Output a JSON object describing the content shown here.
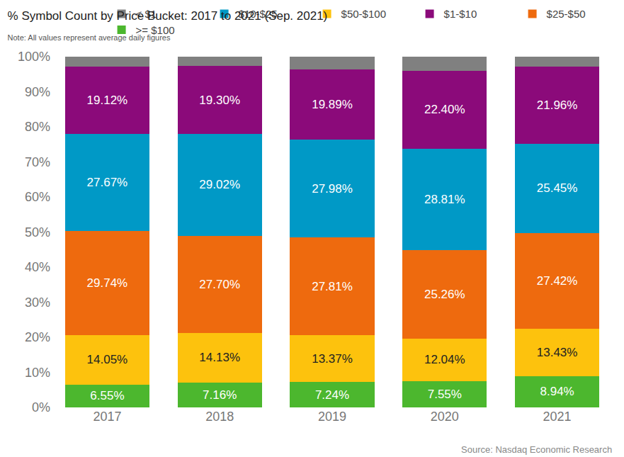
{
  "chart_data": {
    "type": "bar",
    "title": "% Symbol Count by Price Bucket: 2017 to 2021 (Sep. 2021)",
    "subtitle": "Note: All values represent average daily figures",
    "source": "Source: Nasdaq Economic Research",
    "categories": [
      "2017",
      "2018",
      "2019",
      "2020",
      "2021"
    ],
    "stacked": true,
    "data_labels": true,
    "legend": "top right",
    "grid": false,
    "ylim": [
      0,
      100
    ],
    "yticks": [
      {
        "value": 0,
        "label": "0%"
      },
      {
        "value": 10,
        "label": "10%"
      },
      {
        "value": 20,
        "label": "20%"
      },
      {
        "value": 30,
        "label": "30%"
      },
      {
        "value": 40,
        "label": "40%"
      },
      {
        "value": 50,
        "label": "50%"
      },
      {
        "value": 60,
        "label": "60%"
      },
      {
        "value": 70,
        "label": "70%"
      },
      {
        "value": 80,
        "label": "80%"
      },
      {
        "value": 90,
        "label": "90%"
      },
      {
        "value": 100,
        "label": "100%"
      }
    ],
    "series": [
      {
        "name": ">= $100",
        "color": "#4cb72e",
        "values": [
          6.55,
          7.16,
          7.24,
          7.55,
          8.94
        ],
        "value_labels": [
          "6.55%",
          "7.16%",
          "7.24%",
          "7.55%",
          "8.94%"
        ]
      },
      {
        "name": "$50-$100",
        "color": "#fdc20d",
        "values": [
          14.05,
          14.13,
          13.37,
          12.04,
          13.43
        ],
        "value_labels": [
          "14.05%",
          "14.13%",
          "13.37%",
          "12.04%",
          "13.43%"
        ]
      },
      {
        "name": "$25-$50",
        "color": "#ee6a0e",
        "values": [
          29.74,
          27.7,
          27.81,
          25.26,
          27.42
        ],
        "value_labels": [
          "29.74%",
          "27.70%",
          "27.81%",
          "25.26%",
          "27.42%"
        ]
      },
      {
        "name": "$10-$25",
        "color": "#0099c6",
        "values": [
          27.67,
          29.02,
          27.98,
          28.81,
          25.45
        ],
        "value_labels": [
          "27.67%",
          "29.02%",
          "27.98%",
          "28.81%",
          "25.45%"
        ]
      },
      {
        "name": "$1-$10",
        "color": "#8b0a7a",
        "values": [
          19.12,
          19.3,
          19.89,
          22.4,
          21.96
        ],
        "value_labels": [
          "19.12%",
          "19.30%",
          "19.89%",
          "22.40%",
          "21.96%"
        ]
      },
      {
        "name": "< $1",
        "color": "#808080",
        "values": [
          2.87,
          2.69,
          3.71,
          3.94,
          2.8
        ],
        "data_labels": false
      }
    ]
  }
}
